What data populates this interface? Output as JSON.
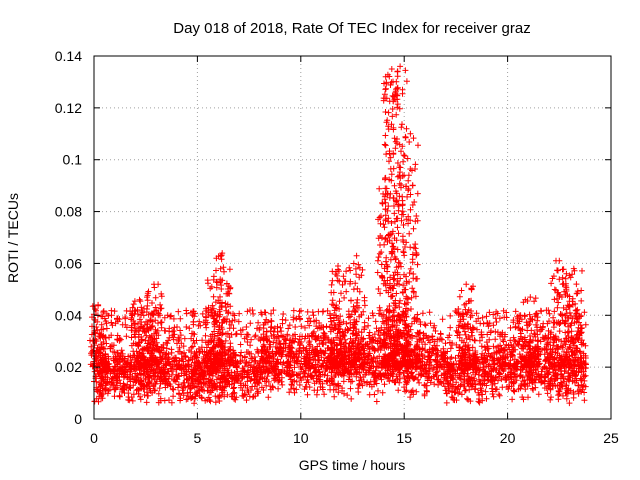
{
  "chart_data": {
    "type": "scatter",
    "title": "Day 018 of 2018, Rate Of TEC Index for receiver graz",
    "xlabel": "GPS time / hours",
    "ylabel": "ROTI / TECUs",
    "xlim": [
      0,
      25
    ],
    "ylim": [
      0,
      0.14
    ],
    "xticks": [
      0,
      5,
      10,
      15,
      20,
      25
    ],
    "yticks": [
      0,
      0.02,
      0.04,
      0.06,
      0.08,
      0.1,
      0.12,
      0.14
    ],
    "xtick_labels": [
      "0",
      "5",
      "10",
      "15",
      "20",
      "25"
    ],
    "ytick_labels": [
      "0",
      "0.02",
      "0.04",
      "0.06",
      "0.08",
      "0.1",
      "0.12",
      "0.14"
    ],
    "grid": true,
    "marker": "+",
    "series": [
      {
        "name": "ROTI",
        "color": "#ff0000",
        "x_range": [
          0,
          23.8
        ],
        "typical_range": [
          0.008,
          0.03
        ],
        "bursts": [
          {
            "x": 0.2,
            "peak": 0.044
          },
          {
            "x": 2.2,
            "peak": 0.046
          },
          {
            "x": 2.9,
            "peak": 0.052
          },
          {
            "x": 5.8,
            "peak": 0.055
          },
          {
            "x": 6.2,
            "peak": 0.064
          },
          {
            "x": 11.8,
            "peak": 0.059
          },
          {
            "x": 12.7,
            "peak": 0.063
          },
          {
            "x": 14.1,
            "peak": 0.093
          },
          {
            "x": 14.4,
            "peak": 0.135
          },
          {
            "x": 14.8,
            "peak": 0.136
          },
          {
            "x": 15.3,
            "peak": 0.11
          },
          {
            "x": 18.0,
            "peak": 0.052
          },
          {
            "x": 21.1,
            "peak": 0.047
          },
          {
            "x": 22.5,
            "peak": 0.061
          },
          {
            "x": 23.2,
            "peak": 0.058
          }
        ]
      }
    ]
  }
}
